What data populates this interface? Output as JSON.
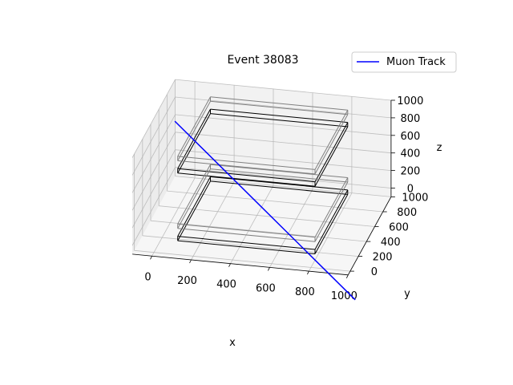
{
  "chart_data": {
    "type": "line",
    "projection": "3d",
    "title": "Event 38083",
    "xlabel": "x",
    "ylabel": "y",
    "zlabel": "z",
    "xlim": [
      -100,
      1000
    ],
    "ylim": [
      -50,
      1000
    ],
    "zlim": [
      -100,
      1000
    ],
    "x_ticks": [
      0,
      200,
      400,
      600,
      800,
      1000
    ],
    "y_ticks": [
      0,
      200,
      400,
      600,
      800,
      1000
    ],
    "z_ticks": [
      0,
      200,
      400,
      600,
      800,
      1000
    ],
    "x_tick_labels": [
      "0",
      "200",
      "400",
      "600",
      "800",
      "1000"
    ],
    "y_tick_labels": [
      "0",
      "200",
      "400",
      "600",
      "800",
      "1000"
    ],
    "z_tick_labels": [
      "0",
      "200",
      "400",
      "600",
      "800",
      "1000"
    ],
    "grid": true,
    "legend": {
      "placement": "top-right",
      "entries": [
        {
          "label": "Muon Track",
          "color": "#0000ff"
        }
      ]
    },
    "series": [
      {
        "name": "Muon Track",
        "color": "#0000ff",
        "points": [
          {
            "x": 100,
            "y": 30,
            "z": 1390
          },
          {
            "x": 930,
            "y": 460,
            "z": -830
          }
        ]
      }
    ],
    "detectors": [
      {
        "x": [
          100,
          800
        ],
        "y": [
          100,
          900
        ],
        "z": [
          740,
          790
        ],
        "color": "#000000"
      },
      {
        "x": [
          100,
          800
        ],
        "y": [
          100,
          900
        ],
        "z": [
          880,
          930
        ],
        "color": "#808080"
      },
      {
        "x": [
          100,
          800
        ],
        "y": [
          100,
          900
        ],
        "z": [
          -30,
          20
        ],
        "color": "#000000"
      },
      {
        "x": [
          100,
          800
        ],
        "y": [
          100,
          900
        ],
        "z": [
          110,
          160
        ],
        "color": "#808080"
      }
    ]
  }
}
